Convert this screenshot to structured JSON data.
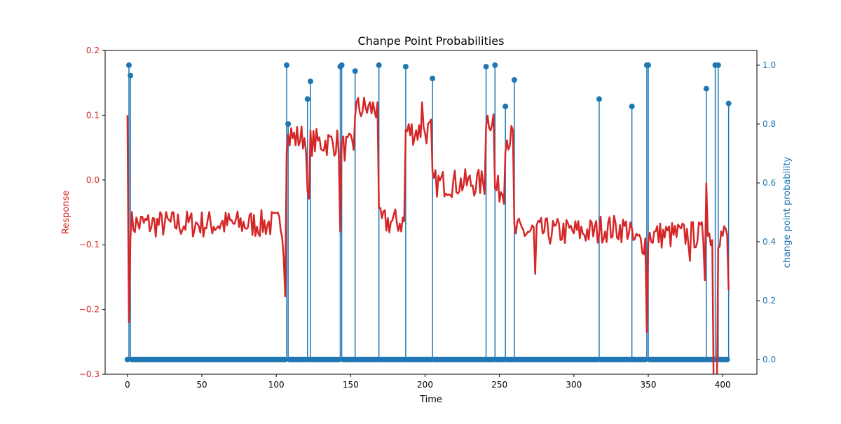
{
  "chart_data": {
    "type": "line",
    "title": "Chanpe Point Probabilities",
    "xlabel": "Time",
    "ylabel": "Response",
    "y2label": "change point probability",
    "xlim": [
      -15,
      423
    ],
    "ylim": [
      -0.3,
      0.2
    ],
    "y2lim": [
      -0.05,
      1.05
    ],
    "x_ticks": [
      0,
      50,
      100,
      150,
      200,
      250,
      300,
      350,
      400
    ],
    "x_tick_labels": [
      "0",
      "50",
      "100",
      "150",
      "200",
      "250",
      "300",
      "350",
      "400"
    ],
    "y_ticks": [
      -0.3,
      -0.2,
      -0.1,
      0.0,
      0.1,
      0.2
    ],
    "y_tick_labels": [
      "−0.3",
      "−0.2",
      "−0.1",
      "0.0",
      "0.1",
      "0.2"
    ],
    "y2_ticks": [
      0.0,
      0.2,
      0.4,
      0.6,
      0.8,
      1.0
    ],
    "y2_tick_labels": [
      "0.0",
      "0.2",
      "0.4",
      "0.6",
      "0.8",
      "1.0"
    ],
    "colors": {
      "response": "#d62728",
      "probability": "#1f77b4",
      "text": "#000000"
    },
    "n_points": 405,
    "response_segments": [
      {
        "start": 0,
        "end": 0,
        "level": 0.1
      },
      {
        "start": 1,
        "end": 1,
        "level": -0.22
      },
      {
        "start": 2,
        "end": 106,
        "level": -0.068
      },
      {
        "start": 107,
        "end": 120,
        "level": 0.065
      },
      {
        "start": 121,
        "end": 122,
        "level": -0.035
      },
      {
        "start": 123,
        "end": 142,
        "level": 0.058
      },
      {
        "start": 143,
        "end": 143,
        "level": -0.08
      },
      {
        "start": 144,
        "end": 152,
        "level": 0.05
      },
      {
        "start": 153,
        "end": 168,
        "level": 0.11
      },
      {
        "start": 169,
        "end": 186,
        "level": -0.065
      },
      {
        "start": 187,
        "end": 204,
        "level": 0.075
      },
      {
        "start": 205,
        "end": 240,
        "level": -0.005
      },
      {
        "start": 241,
        "end": 246,
        "level": 0.095
      },
      {
        "start": 247,
        "end": 253,
        "level": -0.015
      },
      {
        "start": 254,
        "end": 259,
        "level": 0.065
      },
      {
        "start": 260,
        "end": 316,
        "level": -0.08
      },
      {
        "start": 317,
        "end": 338,
        "level": -0.075
      },
      {
        "start": 339,
        "end": 348,
        "level": -0.095
      },
      {
        "start": 349,
        "end": 349,
        "level": -0.235
      },
      {
        "start": 350,
        "end": 393,
        "level": -0.085
      },
      {
        "start": 394,
        "end": 396,
        "level": -0.33
      },
      {
        "start": 397,
        "end": 403,
        "level": -0.085
      },
      {
        "start": 404,
        "end": 404,
        "level": -0.17
      }
    ],
    "response_noise": 0.022,
    "response_spikes": [
      {
        "x": 105,
        "y": -0.12
      },
      {
        "x": 106,
        "y": -0.18
      },
      {
        "x": 110,
        "y": 0.08
      },
      {
        "x": 168,
        "y": 0.12
      },
      {
        "x": 198,
        "y": 0.12
      },
      {
        "x": 274,
        "y": -0.145
      },
      {
        "x": 378,
        "y": -0.125
      },
      {
        "x": 388,
        "y": -0.155
      },
      {
        "x": 389,
        "y": -0.005
      }
    ],
    "change_points": [
      {
        "x": 1,
        "p": 1.0
      },
      {
        "x": 2,
        "p": 0.965
      },
      {
        "x": 107,
        "p": 1.0
      },
      {
        "x": 108,
        "p": 0.8
      },
      {
        "x": 121,
        "p": 0.885
      },
      {
        "x": 123,
        "p": 0.945
      },
      {
        "x": 143,
        "p": 0.995
      },
      {
        "x": 144,
        "p": 1.0
      },
      {
        "x": 153,
        "p": 0.98
      },
      {
        "x": 169,
        "p": 1.0
      },
      {
        "x": 187,
        "p": 0.995
      },
      {
        "x": 205,
        "p": 0.955
      },
      {
        "x": 241,
        "p": 0.995
      },
      {
        "x": 247,
        "p": 1.0
      },
      {
        "x": 254,
        "p": 0.86
      },
      {
        "x": 260,
        "p": 0.95
      },
      {
        "x": 317,
        "p": 0.885
      },
      {
        "x": 339,
        "p": 0.86
      },
      {
        "x": 349,
        "p": 1.0
      },
      {
        "x": 350,
        "p": 1.0
      },
      {
        "x": 389,
        "p": 0.92
      },
      {
        "x": 395,
        "p": 1.0
      },
      {
        "x": 397,
        "p": 1.0
      },
      {
        "x": 404,
        "p": 0.87
      }
    ],
    "baseline_probability": 0.0,
    "grid": false,
    "legend": "none"
  }
}
